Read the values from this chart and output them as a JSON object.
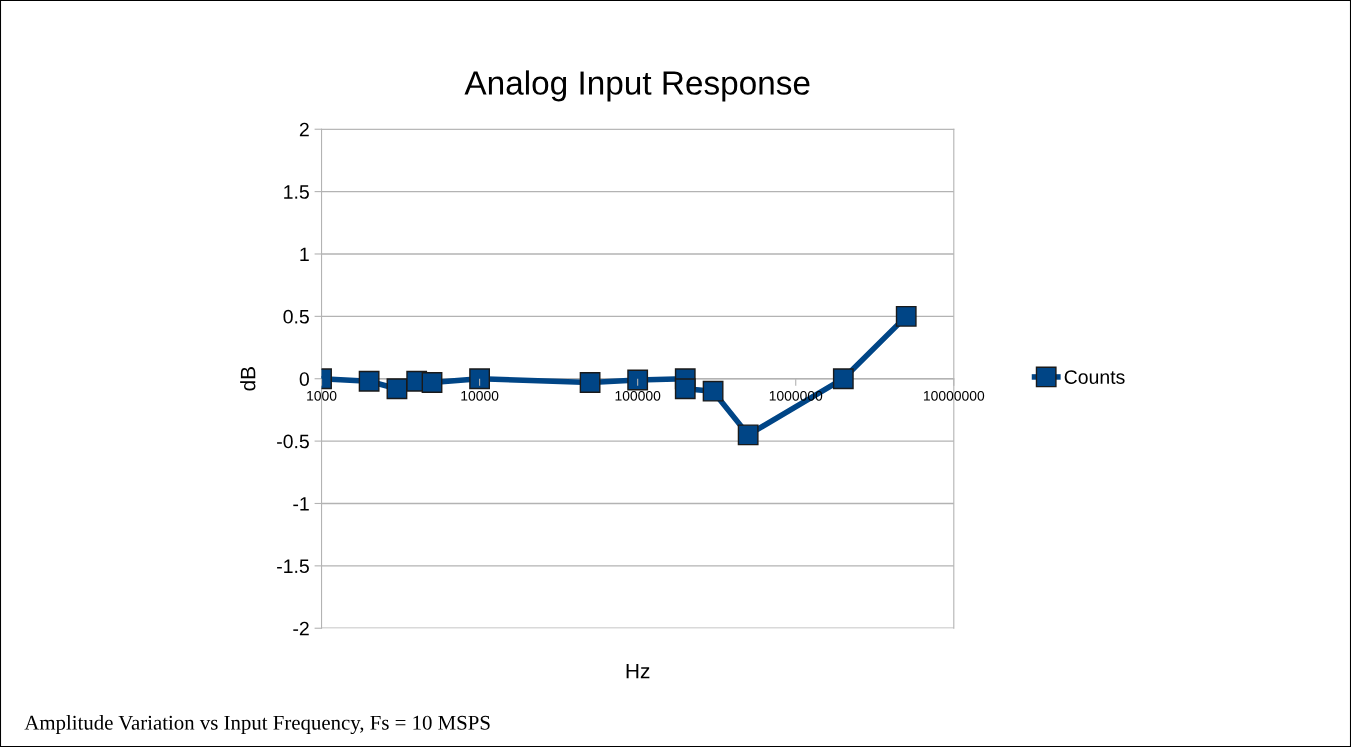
{
  "chart_data": {
    "type": "line",
    "title": "Analog Input Response",
    "xlabel": "Hz",
    "ylabel": "dB",
    "x": [
      1000,
      2000,
      3000,
      4000,
      5000,
      10000,
      50000,
      100000,
      200000,
      200000,
      300000,
      500000,
      2000000,
      5000000
    ],
    "series": [
      {
        "name": "Counts",
        "color": "#004586",
        "values": [
          0,
          -0.02,
          -0.08,
          -0.02,
          -0.03,
          0,
          -0.03,
          -0.01,
          0,
          -0.08,
          -0.1,
          -0.45,
          0,
          0.5
        ]
      }
    ],
    "log": "x",
    "xlim": [
      1000,
      10000000
    ],
    "xticks": [
      1000,
      10000,
      100000,
      1000000,
      10000000
    ],
    "ylim": [
      -2,
      2
    ],
    "yticks": [
      -2,
      -1.5,
      -1,
      -0.5,
      0,
      0.5,
      1,
      1.5,
      2
    ],
    "grid": "y",
    "legend": "right",
    "marker": "square",
    "line_style": "solid",
    "annotations": [
      "Amplitude Variation vs Input Frequency, Fs = 10 MSPS"
    ]
  }
}
